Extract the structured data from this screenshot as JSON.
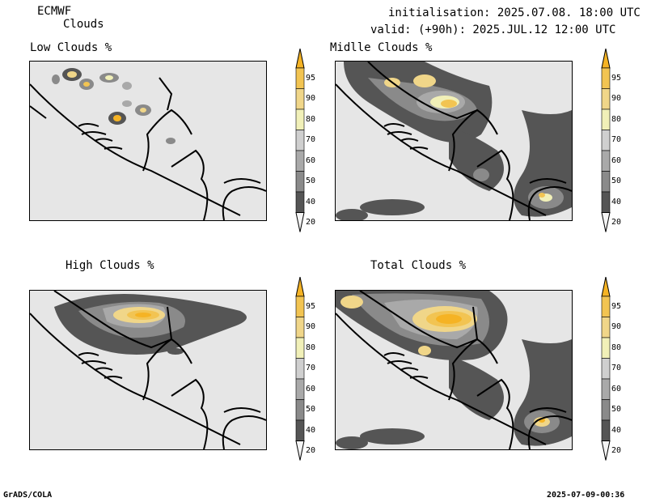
{
  "header": {
    "model": "ECMWF",
    "product": "Clouds",
    "init_line": "initialisation: 2025.07.08. 18:00 UTC",
    "valid_line": "valid: (+90h): 2025.JUL.12 12:00 UTC"
  },
  "panels": [
    {
      "key": "low",
      "title": "Low Clouds %"
    },
    {
      "key": "middle",
      "title": "Midlle Clouds %"
    },
    {
      "key": "high",
      "title": "High Clouds %"
    },
    {
      "key": "total",
      "title": "Total Clouds %"
    }
  ],
  "colorbar": {
    "levels": [
      "95",
      "90",
      "80",
      "70",
      "60",
      "50",
      "40",
      "20"
    ],
    "colors": [
      "#f5b324",
      "#f2c452",
      "#f0d689",
      "#f1f0b8",
      "#cfcfcf",
      "#a9a9a9",
      "#8a8a8a",
      "#555555",
      "#f4f4f4"
    ]
  },
  "footer": {
    "left": "GrADS/COLA",
    "right": "2025-07-09-00:36"
  }
}
